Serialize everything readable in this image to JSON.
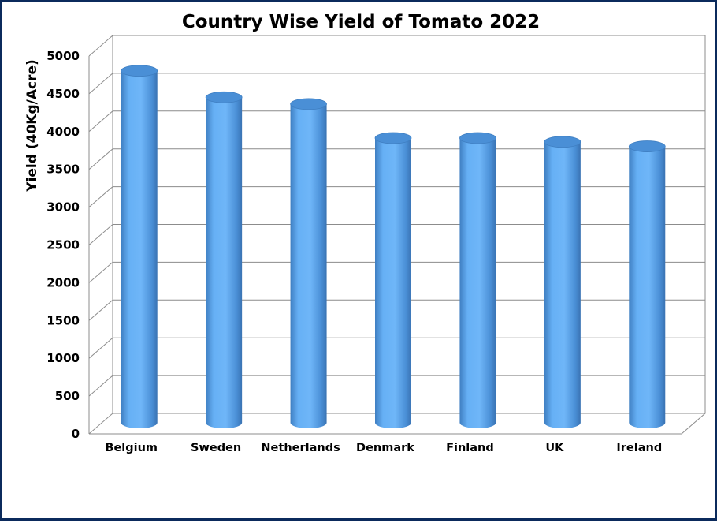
{
  "chart_data": {
    "type": "bar",
    "title": "Country Wise Yield of Tomato 2022",
    "xlabel": "",
    "ylabel": "Yield (40Kg/Acre)",
    "ylim": [
      0,
      5000
    ],
    "yticks": [
      0,
      500,
      1000,
      1500,
      2000,
      2500,
      3000,
      3500,
      4000,
      4500,
      5000
    ],
    "categories": [
      "Belgium",
      "Sweden",
      "Netherlands",
      "Denmark",
      "Finland",
      "UK",
      "Ireland"
    ],
    "values": [
      4700,
      4350,
      4260,
      3810,
      3810,
      3760,
      3700
    ],
    "grid": true,
    "legend": "none",
    "bar_color": "#66b0f5",
    "bar_shade_color": "#3f7fc2",
    "bar_top_color": "#4a8fd6"
  }
}
